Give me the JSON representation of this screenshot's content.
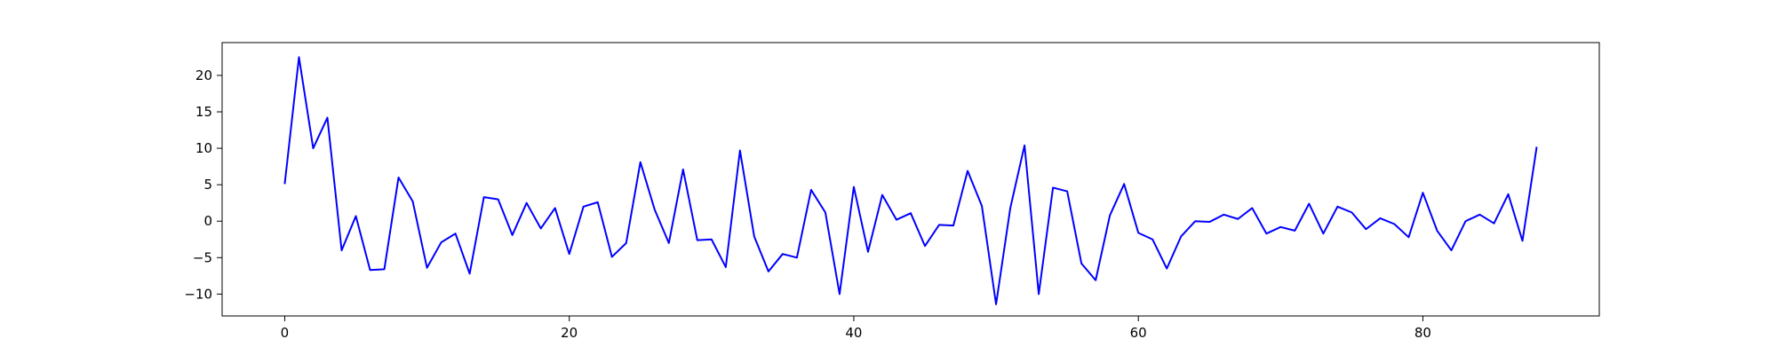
{
  "chart_data": {
    "type": "line",
    "title": "",
    "xlabel": "",
    "ylabel": "",
    "xlim": [
      -4.4,
      92.4
    ],
    "ylim": [
      -13.0,
      24.5
    ],
    "grid": false,
    "legend": "none",
    "x_ticks": [
      0,
      20,
      40,
      60,
      80
    ],
    "y_ticks": [
      -10,
      -5,
      0,
      5,
      10,
      15,
      20
    ],
    "series": [
      {
        "color": "#0000ff",
        "x": [
          0,
          1,
          2,
          3,
          4,
          5,
          6,
          7,
          8,
          9,
          10,
          11,
          12,
          13,
          14,
          15,
          16,
          17,
          18,
          19,
          20,
          21,
          22,
          23,
          24,
          25,
          26,
          27,
          28,
          29,
          30,
          31,
          32,
          33,
          34,
          35,
          36,
          37,
          38,
          39,
          40,
          41,
          42,
          43,
          44,
          45,
          46,
          47,
          48,
          49,
          50,
          51,
          52,
          53,
          54,
          55,
          56,
          57,
          58,
          59,
          60,
          61,
          62,
          63,
          64,
          65,
          66,
          67,
          68,
          69,
          70,
          71,
          72,
          73,
          74,
          75,
          76,
          77,
          78,
          79,
          80,
          81,
          82,
          83,
          84,
          85,
          86,
          87,
          88
        ],
        "y": [
          5.1,
          22.5,
          10.0,
          14.2,
          -4.0,
          0.7,
          -6.7,
          -6.6,
          6.0,
          2.7,
          -6.4,
          -2.9,
          -1.7,
          -7.2,
          3.3,
          3.0,
          -1.9,
          2.5,
          -1.0,
          1.8,
          -4.5,
          2.0,
          2.6,
          -4.9,
          -3.0,
          8.1,
          1.6,
          -3.0,
          7.1,
          -2.6,
          -2.5,
          -6.3,
          9.7,
          -2.1,
          -6.9,
          -4.5,
          -5.0,
          4.3,
          1.2,
          -10.0,
          4.7,
          -4.2,
          3.6,
          0.2,
          1.1,
          -3.4,
          -0.5,
          -0.6,
          6.9,
          2.1,
          -11.4,
          1.8,
          10.4,
          -10.0,
          4.6,
          4.1,
          -5.8,
          -8.1,
          0.8,
          5.1,
          -1.6,
          -2.5,
          -6.5,
          -2.1,
          0.0,
          -0.1,
          0.9,
          0.3,
          1.8,
          -1.7,
          -0.8,
          -1.3,
          2.4,
          -1.7,
          2.0,
          1.2,
          -1.1,
          0.4,
          -0.4,
          -2.2,
          3.9,
          -1.3,
          -4.0,
          0.0,
          0.9,
          -0.3,
          3.7,
          -2.7,
          10.2
        ]
      }
    ]
  }
}
